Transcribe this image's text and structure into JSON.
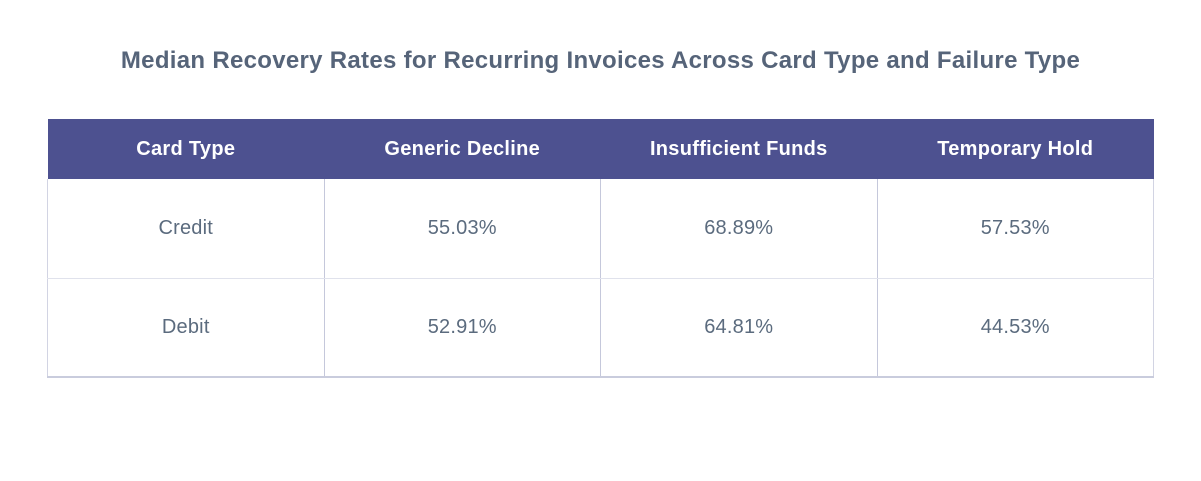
{
  "title": "Median Recovery Rates for Recurring Invoices Across Card Type and Failure Type",
  "table": {
    "columns": [
      "Card Type",
      "Generic Decline",
      "Insufficient Funds",
      "Temporary Hold"
    ],
    "rows": [
      {
        "cells": [
          "Credit",
          "55.03%",
          "68.89%",
          "57.53%"
        ]
      },
      {
        "cells": [
          "Debit",
          "52.91%",
          "64.81%",
          "44.53%"
        ]
      }
    ]
  },
  "colors": {
    "header_bg": "#4d5190",
    "header_text": "#ffffff",
    "body_text": "#5b6b7e",
    "title_text": "#566479",
    "border_vertical": "#c5c8db",
    "border_horizontal": "#e0e2ec",
    "border_outer": "#d2d4e3",
    "table_bottom": "#c9ccdd",
    "page_bg": "#ffffff"
  },
  "chart_data": {
    "type": "table",
    "title": "Median Recovery Rates for Recurring Invoices Across Card Type and Failure Type",
    "columns": [
      "Card Type",
      "Generic Decline",
      "Insufficient Funds",
      "Temporary Hold"
    ],
    "rows": [
      [
        "Credit",
        "55.03%",
        "68.89%",
        "57.53%"
      ],
      [
        "Debit",
        "52.91%",
        "64.81%",
        "44.53%"
      ]
    ],
    "values_numeric": {
      "Credit": {
        "Generic Decline": 55.03,
        "Insufficient Funds": 68.89,
        "Temporary Hold": 57.53
      },
      "Debit": {
        "Generic Decline": 52.91,
        "Insufficient Funds": 64.81,
        "Temporary Hold": 44.53
      }
    },
    "value_unit": "percent"
  }
}
